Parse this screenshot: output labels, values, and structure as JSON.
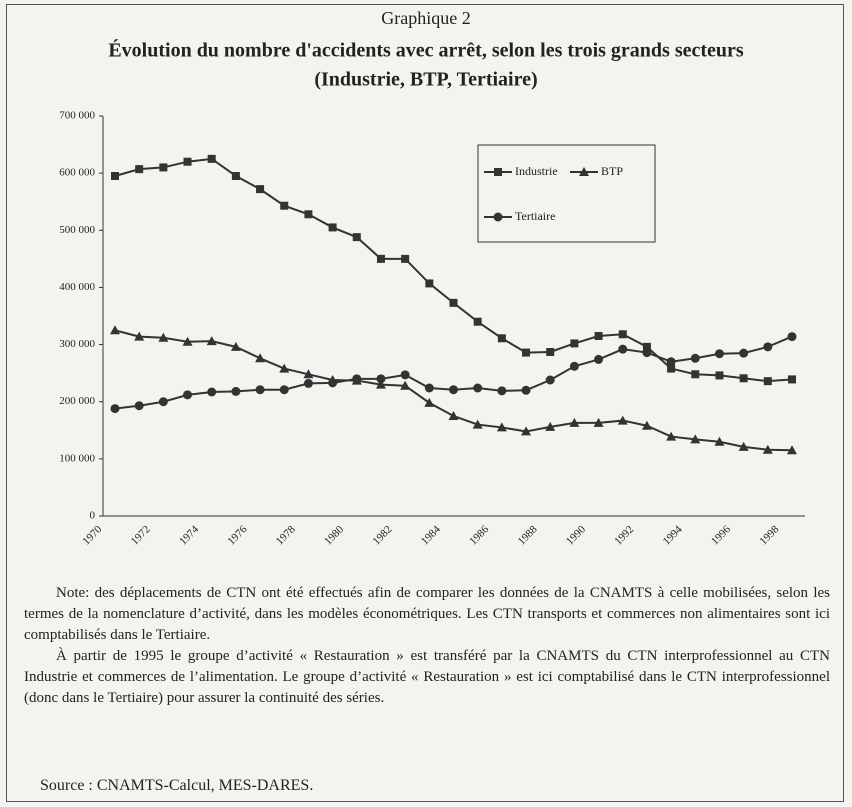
{
  "figure_label": "Graphique 2",
  "chart_data": {
    "type": "line",
    "title": "Évolution du nombre d'accidents avec arrêt, selon les trois grands secteurs",
    "subtitle": "(Industrie, BTP, Tertiaire)",
    "categories": [
      "1970",
      null,
      "1972",
      null,
      "1974",
      null,
      "1976",
      null,
      "1978",
      null,
      "1980",
      null,
      "1982",
      null,
      "1984",
      null,
      "1986",
      null,
      "1988",
      null,
      "1990",
      null,
      "1992",
      null,
      "1994",
      null,
      "1996",
      null,
      "1998"
    ],
    "series": [
      {
        "name": "Industrie",
        "color": "#333333",
        "marker": "square",
        "values": [
          595000,
          607000,
          610000,
          620000,
          625000,
          595000,
          572000,
          543000,
          528000,
          505000,
          488000,
          450000,
          450000,
          407000,
          373000,
          340000,
          311000,
          286000,
          287000,
          302000,
          315000,
          318000,
          296000,
          258000,
          248000,
          246000,
          241000,
          236000,
          239000
        ]
      },
      {
        "name": "BTP",
        "color": "#333333",
        "marker": "triangle",
        "values": [
          325000,
          314000,
          312000,
          305000,
          306000,
          296000,
          276000,
          258000,
          248000,
          238000,
          237000,
          230000,
          228000,
          198000,
          175000,
          160000,
          155000,
          148000,
          156000,
          163000,
          163000,
          167000,
          158000,
          139000,
          134000,
          130000,
          121000,
          116000,
          115000
        ]
      },
      {
        "name": "Tertiaire",
        "color": "#333333",
        "marker": "circle",
        "values": [
          188000,
          193000,
          200000,
          212000,
          217000,
          218000,
          221000,
          221000,
          232000,
          233000,
          240000,
          240000,
          247000,
          224000,
          221000,
          224000,
          219000,
          220000,
          238000,
          262000,
          274000,
          292000,
          286000,
          270000,
          276000,
          284000,
          285000,
          296000,
          314000
        ]
      }
    ],
    "ylim": [
      0,
      700000
    ],
    "yticks": [
      0,
      {
        "value": 100000,
        "label": "100 000"
      },
      {
        "value": 200000,
        "label": "200 000"
      },
      {
        "value": 300000,
        "label": "300 000"
      },
      {
        "value": 400000,
        "label": "400 000"
      },
      {
        "value": 500000,
        "label": "500 000"
      },
      {
        "value": 600000,
        "label": "600 000"
      },
      {
        "value": 700000,
        "label": "700 000"
      }
    ],
    "grid": false
  },
  "note": [
    "Note: des déplacements de CTN ont été effectués afin de comparer les données de la CNAMTS à celle mobilisées, selon les termes de la nomenclature d’activité, dans les modèles économétriques. Les CTN transports et commerces non alimentaires sont ici comptabilisés dans le Tertiaire.",
    "À partir de 1995 le groupe d’activité « Restauration » est transféré par la CNAMTS du CTN interprofessionnel au CTN Industrie et commerces de l’alimentation. Le groupe d’activité « Restauration » est ici comptabilisé dans le CTN interprofessionnel (donc dans le Tertiaire) pour assurer la continuité des séries."
  ],
  "source": "Source : CNAMTS-Calcul, MES-DARES."
}
